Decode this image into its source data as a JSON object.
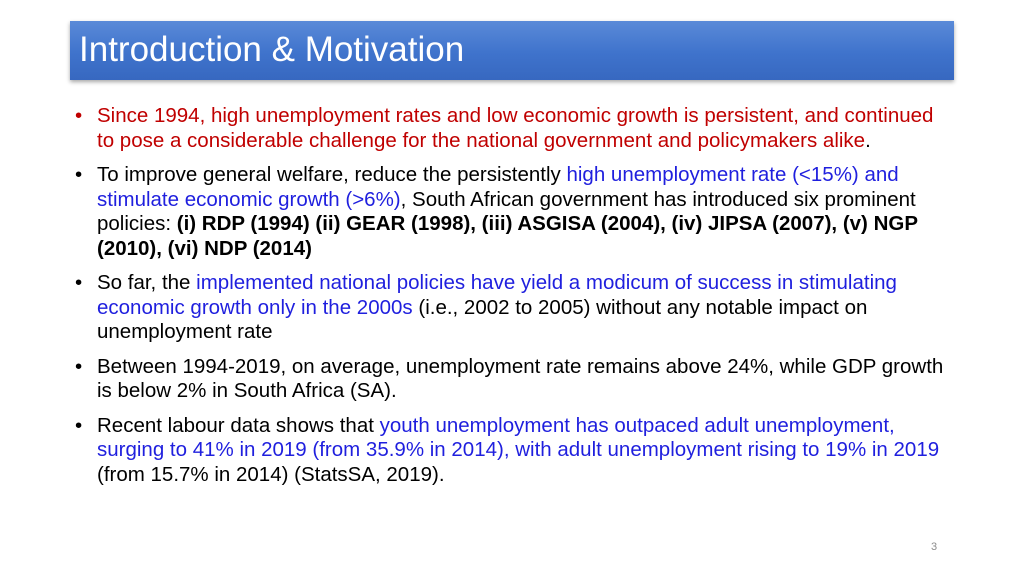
{
  "slide": {
    "title": "Introduction & Motivation",
    "page_number": "3"
  },
  "bullets": [
    {
      "marker": "•",
      "marker_color": "#c00000",
      "segments": [
        {
          "text": "Since 1994, high unemployment rates and low economic growth is persistent, and continued to pose a considerable challenge for the national government and policymakers alike",
          "style": "red"
        },
        {
          "text": ".",
          "style": "plain"
        }
      ]
    },
    {
      "marker": "•",
      "segments": [
        {
          "text": "To improve general welfare, reduce the persistently ",
          "style": "plain"
        },
        {
          "text": "high unemployment rate (<15%) and stimulate economic growth (>6%)",
          "style": "blue"
        },
        {
          "text": ", South African government has introduced six prominent policies: ",
          "style": "plain"
        },
        {
          "text": "(i) RDP (1994) (ii) GEAR (1998), (iii) ASGISA (2004), (iv) JIPSA (2007), (v) NGP (2010), (vi) NDP (2014)",
          "style": "bold"
        }
      ]
    },
    {
      "marker": "•",
      "segments": [
        {
          "text": "So far, the ",
          "style": "plain"
        },
        {
          "text": "implemented national policies have yield a modicum of success in stimulating economic growth only in the 2000s",
          "style": "blue"
        },
        {
          "text": " (i.e., 2002 to 2005) without any notable impact on unemployment rate",
          "style": "plain"
        }
      ]
    },
    {
      "marker": "•",
      "segments": [
        {
          "text": "Between 1994-2019, on average, unemployment rate remains above 24%, while GDP growth is below 2% in South Africa (SA).",
          "style": "plain"
        }
      ]
    },
    {
      "marker": "•",
      "segments": [
        {
          "text": "Recent labour data  shows that ",
          "style": "plain"
        },
        {
          "text": "youth unemployment has outpaced adult unemployment, surging to 41% in 2019 (from 35.9% in 2014), with adult unemployment rising to 19% in 2019",
          "style": "blue"
        },
        {
          "text": " (from 15.7% in 2014) (StatsSA, 2019).",
          "style": "plain"
        }
      ]
    }
  ]
}
